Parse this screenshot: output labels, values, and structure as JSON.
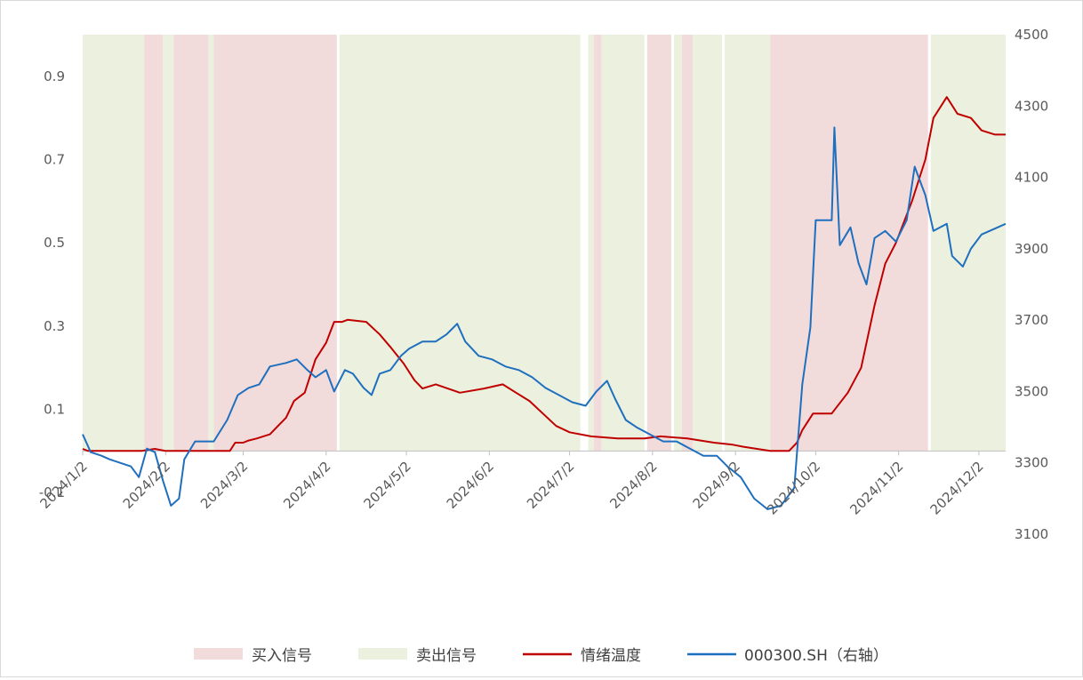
{
  "chart_data": {
    "type": "line",
    "title": "",
    "xlabel": "",
    "ylabel": "",
    "x_tick_labels": [
      "2024/1/2",
      "2024/2/2",
      "2024/3/2",
      "2024/4/2",
      "2024/5/2",
      "2024/6/2",
      "2024/7/2",
      "2024/8/2",
      "2024/9/2",
      "2024/10/2",
      "2024/11/2",
      "2024/12/2"
    ],
    "y_left": {
      "ticks": [
        -0.1,
        0.1,
        0.3,
        0.5,
        0.7,
        0.9
      ],
      "ylim": [
        -0.2,
        1.0
      ]
    },
    "y_right": {
      "ticks": [
        3100,
        3300,
        3500,
        3700,
        3900,
        4100,
        4300,
        4500
      ],
      "ylim": [
        3100,
        4500
      ]
    },
    "grid": false,
    "legend_position": "bottom",
    "legend": [
      "买入信号",
      "卖出信号",
      "情绪温度",
      "000300.SH（右轴）"
    ],
    "colors": {
      "buy": "#f2dcdb",
      "sell": "#ebf1de",
      "emotion": "#c00000",
      "index": "#1f6fbf",
      "axis": "#d9d9d9"
    },
    "signal_bands": [
      {
        "signal": "sell",
        "start": "2024-01-02",
        "end": "2024-01-25"
      },
      {
        "signal": "buy",
        "start": "2024-01-25",
        "end": "2024-02-01"
      },
      {
        "signal": "sell",
        "start": "2024-02-01",
        "end": "2024-02-05"
      },
      {
        "signal": "buy",
        "start": "2024-02-05",
        "end": "2024-02-18"
      },
      {
        "signal": "sell",
        "start": "2024-02-18",
        "end": "2024-02-20"
      },
      {
        "signal": "buy",
        "start": "2024-02-20",
        "end": "2024-04-06"
      },
      {
        "signal": "sell",
        "start": "2024-04-07",
        "end": "2024-07-06"
      },
      {
        "signal": "sell",
        "start": "2024-07-09",
        "end": "2024-07-11"
      },
      {
        "signal": "buy",
        "start": "2024-07-11",
        "end": "2024-07-14"
      },
      {
        "signal": "sell",
        "start": "2024-07-14",
        "end": "2024-07-30"
      },
      {
        "signal": "buy",
        "start": "2024-07-31",
        "end": "2024-08-09"
      },
      {
        "signal": "sell",
        "start": "2024-08-10",
        "end": "2024-08-13"
      },
      {
        "signal": "buy",
        "start": "2024-08-13",
        "end": "2024-08-17"
      },
      {
        "signal": "sell",
        "start": "2024-08-17",
        "end": "2024-08-28"
      },
      {
        "signal": "sell",
        "start": "2024-08-29",
        "end": "2024-09-15"
      },
      {
        "signal": "buy",
        "start": "2024-09-15",
        "end": "2024-11-13"
      },
      {
        "signal": "sell",
        "start": "2024-11-14",
        "end": "2024-12-12"
      }
    ],
    "series": [
      {
        "name": "情绪温度",
        "axis": "left",
        "color": "#c00000",
        "points": [
          [
            "2024-01-02",
            0.005
          ],
          [
            "2024-01-04",
            0.0
          ],
          [
            "2024-01-24",
            0.0
          ],
          [
            "2024-01-29",
            0.005
          ],
          [
            "2024-02-02",
            0.0
          ],
          [
            "2024-02-26",
            0.0
          ],
          [
            "2024-02-28",
            0.02
          ],
          [
            "2024-03-02",
            0.02
          ],
          [
            "2024-03-04",
            0.025
          ],
          [
            "2024-03-07",
            0.03
          ],
          [
            "2024-03-12",
            0.04
          ],
          [
            "2024-03-15",
            0.06
          ],
          [
            "2024-03-18",
            0.08
          ],
          [
            "2024-03-21",
            0.12
          ],
          [
            "2024-03-25",
            0.14
          ],
          [
            "2024-03-29",
            0.22
          ],
          [
            "2024-04-02",
            0.26
          ],
          [
            "2024-04-05",
            0.31
          ],
          [
            "2024-04-08",
            0.31
          ],
          [
            "2024-04-10",
            0.315
          ],
          [
            "2024-04-17",
            0.31
          ],
          [
            "2024-04-22",
            0.28
          ],
          [
            "2024-04-26",
            0.25
          ],
          [
            "2024-05-01",
            0.21
          ],
          [
            "2024-05-05",
            0.17
          ],
          [
            "2024-05-08",
            0.15
          ],
          [
            "2024-05-13",
            0.16
          ],
          [
            "2024-05-22",
            0.14
          ],
          [
            "2024-05-31",
            0.15
          ],
          [
            "2024-06-07",
            0.16
          ],
          [
            "2024-06-12",
            0.14
          ],
          [
            "2024-06-17",
            0.12
          ],
          [
            "2024-06-22",
            0.09
          ],
          [
            "2024-06-27",
            0.06
          ],
          [
            "2024-07-02",
            0.045
          ],
          [
            "2024-07-10",
            0.035
          ],
          [
            "2024-07-20",
            0.03
          ],
          [
            "2024-07-30",
            0.03
          ],
          [
            "2024-08-05",
            0.035
          ],
          [
            "2024-08-15",
            0.03
          ],
          [
            "2024-08-20",
            0.025
          ],
          [
            "2024-08-25",
            0.02
          ],
          [
            "2024-09-01",
            0.015
          ],
          [
            "2024-09-05",
            0.01
          ],
          [
            "2024-09-15",
            0.0
          ],
          [
            "2024-09-22",
            0.0
          ],
          [
            "2024-09-25",
            0.02
          ],
          [
            "2024-09-27",
            0.05
          ],
          [
            "2024-10-01",
            0.09
          ],
          [
            "2024-10-08",
            0.09
          ],
          [
            "2024-10-14",
            0.14
          ],
          [
            "2024-10-19",
            0.2
          ],
          [
            "2024-10-24",
            0.35
          ],
          [
            "2024-10-28",
            0.45
          ],
          [
            "2024-11-01",
            0.5
          ],
          [
            "2024-11-07",
            0.6
          ],
          [
            "2024-11-12",
            0.7
          ],
          [
            "2024-11-15",
            0.8
          ],
          [
            "2024-11-20",
            0.85
          ],
          [
            "2024-11-24",
            0.81
          ],
          [
            "2024-11-29",
            0.8
          ],
          [
            "2024-12-03",
            0.77
          ],
          [
            "2024-12-08",
            0.76
          ],
          [
            "2024-12-12",
            0.76
          ]
        ]
      },
      {
        "name": "000300.SH（右轴）",
        "axis": "right",
        "color": "#1f6fbf",
        "points": [
          [
            "2024-01-02",
            3380
          ],
          [
            "2024-01-05",
            3330
          ],
          [
            "2024-01-09",
            3320
          ],
          [
            "2024-01-12",
            3310
          ],
          [
            "2024-01-16",
            3300
          ],
          [
            "2024-01-20",
            3290
          ],
          [
            "2024-01-23",
            3260
          ],
          [
            "2024-01-26",
            3340
          ],
          [
            "2024-01-29",
            3330
          ],
          [
            "2024-02-01",
            3250
          ],
          [
            "2024-02-04",
            3180
          ],
          [
            "2024-02-07",
            3200
          ],
          [
            "2024-02-09",
            3310
          ],
          [
            "2024-02-13",
            3360
          ],
          [
            "2024-02-20",
            3360
          ],
          [
            "2024-02-25",
            3420
          ],
          [
            "2024-02-29",
            3490
          ],
          [
            "2024-03-04",
            3510
          ],
          [
            "2024-03-08",
            3520
          ],
          [
            "2024-03-12",
            3570
          ],
          [
            "2024-03-18",
            3580
          ],
          [
            "2024-03-22",
            3590
          ],
          [
            "2024-03-26",
            3560
          ],
          [
            "2024-03-29",
            3540
          ],
          [
            "2024-04-02",
            3560
          ],
          [
            "2024-04-05",
            3500
          ],
          [
            "2024-04-09",
            3560
          ],
          [
            "2024-04-12",
            3550
          ],
          [
            "2024-04-16",
            3510
          ],
          [
            "2024-04-19",
            3490
          ],
          [
            "2024-04-22",
            3550
          ],
          [
            "2024-04-26",
            3560
          ],
          [
            "2024-04-30",
            3600
          ],
          [
            "2024-05-03",
            3620
          ],
          [
            "2024-05-08",
            3640
          ],
          [
            "2024-05-13",
            3640
          ],
          [
            "2024-05-17",
            3660
          ],
          [
            "2024-05-21",
            3690
          ],
          [
            "2024-05-24",
            3640
          ],
          [
            "2024-05-29",
            3600
          ],
          [
            "2024-06-03",
            3590
          ],
          [
            "2024-06-08",
            3570
          ],
          [
            "2024-06-13",
            3560
          ],
          [
            "2024-06-18",
            3540
          ],
          [
            "2024-06-23",
            3510
          ],
          [
            "2024-06-28",
            3490
          ],
          [
            "2024-07-03",
            3470
          ],
          [
            "2024-07-08",
            3460
          ],
          [
            "2024-07-12",
            3500
          ],
          [
            "2024-07-16",
            3530
          ],
          [
            "2024-07-19",
            3480
          ],
          [
            "2024-07-23",
            3420
          ],
          [
            "2024-07-27",
            3400
          ],
          [
            "2024-08-01",
            3380
          ],
          [
            "2024-08-06",
            3360
          ],
          [
            "2024-08-11",
            3360
          ],
          [
            "2024-08-16",
            3340
          ],
          [
            "2024-08-21",
            3320
          ],
          [
            "2024-08-26",
            3320
          ],
          [
            "2024-08-30",
            3290
          ],
          [
            "2024-09-04",
            3260
          ],
          [
            "2024-09-09",
            3200
          ],
          [
            "2024-09-14",
            3170
          ],
          [
            "2024-09-19",
            3180
          ],
          [
            "2024-09-24",
            3230
          ],
          [
            "2024-09-27",
            3520
          ],
          [
            "2024-09-30",
            3680
          ],
          [
            "2024-10-02",
            3980
          ],
          [
            "2024-10-08",
            3980
          ],
          [
            "2024-10-09",
            4240
          ],
          [
            "2024-10-11",
            3910
          ],
          [
            "2024-10-15",
            3960
          ],
          [
            "2024-10-18",
            3860
          ],
          [
            "2024-10-21",
            3800
          ],
          [
            "2024-10-24",
            3930
          ],
          [
            "2024-10-28",
            3950
          ],
          [
            "2024-11-01",
            3920
          ],
          [
            "2024-11-05",
            3980
          ],
          [
            "2024-11-08",
            4130
          ],
          [
            "2024-11-12",
            4050
          ],
          [
            "2024-11-15",
            3950
          ],
          [
            "2024-11-20",
            3970
          ],
          [
            "2024-11-22",
            3880
          ],
          [
            "2024-11-26",
            3850
          ],
          [
            "2024-11-29",
            3900
          ],
          [
            "2024-12-03",
            3940
          ],
          [
            "2024-12-06",
            3950
          ],
          [
            "2024-12-09",
            3960
          ],
          [
            "2024-12-12",
            3970
          ]
        ]
      }
    ]
  }
}
